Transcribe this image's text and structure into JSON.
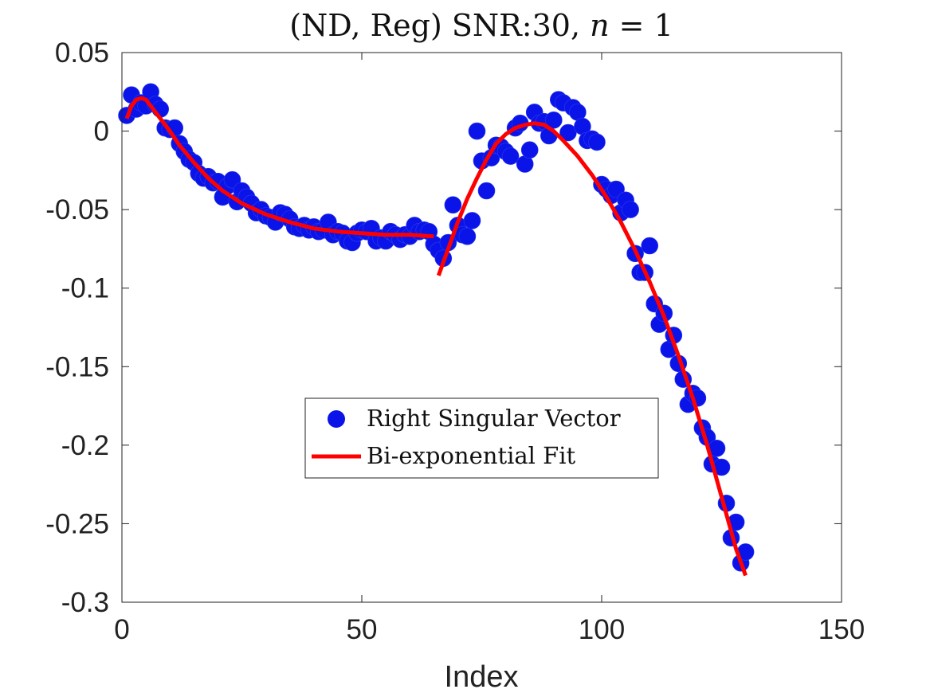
{
  "chart_data": {
    "type": "scatter",
    "title": "(ND, Reg) SNR:30, n = 1",
    "title_parts": {
      "prefix": "(ND, Reg) SNR:30, ",
      "math_var": "n",
      "math_rest": " = 1"
    },
    "xlabel": "Index",
    "ylabel": "",
    "xlim": [
      0,
      150
    ],
    "ylim": [
      -0.3,
      0.05
    ],
    "xticks": [
      0,
      50,
      100,
      150
    ],
    "xtick_labels": [
      "0",
      "50",
      "100",
      "150"
    ],
    "yticks": [
      0.05,
      0,
      -0.05,
      -0.1,
      -0.15,
      -0.2,
      -0.25,
      -0.3
    ],
    "ytick_labels": [
      "0.05",
      "0",
      "-0.05",
      "-0.1",
      "-0.15",
      "-0.2",
      "-0.25",
      "-0.3"
    ],
    "grid": false,
    "legend_position": "center",
    "series": [
      {
        "name": "Right Singular Vector",
        "kind": "scatter",
        "color": "#0a14e8",
        "points": [
          [
            1,
            0.01
          ],
          [
            2,
            0.023
          ],
          [
            3,
            0.014
          ],
          [
            4,
            0.018
          ],
          [
            5,
            0.016
          ],
          [
            6,
            0.025
          ],
          [
            7,
            0.017
          ],
          [
            8,
            0.014
          ],
          [
            9,
            0.002
          ],
          [
            10,
            0.001
          ],
          [
            11,
            0.002
          ],
          [
            12,
            -0.008
          ],
          [
            13,
            -0.013
          ],
          [
            14,
            -0.018
          ],
          [
            15,
            -0.02
          ],
          [
            16,
            -0.027
          ],
          [
            17,
            -0.03
          ],
          [
            18,
            -0.029
          ],
          [
            19,
            -0.033
          ],
          [
            20,
            -0.032
          ],
          [
            21,
            -0.042
          ],
          [
            22,
            -0.035
          ],
          [
            23,
            -0.031
          ],
          [
            24,
            -0.045
          ],
          [
            25,
            -0.038
          ],
          [
            26,
            -0.042
          ],
          [
            27,
            -0.046
          ],
          [
            28,
            -0.052
          ],
          [
            29,
            -0.05
          ],
          [
            30,
            -0.054
          ],
          [
            31,
            -0.055
          ],
          [
            32,
            -0.058
          ],
          [
            33,
            -0.052
          ],
          [
            34,
            -0.053
          ],
          [
            35,
            -0.056
          ],
          [
            36,
            -0.061
          ],
          [
            37,
            -0.062
          ],
          [
            38,
            -0.06
          ],
          [
            39,
            -0.063
          ],
          [
            40,
            -0.061
          ],
          [
            41,
            -0.064
          ],
          [
            42,
            -0.063
          ],
          [
            43,
            -0.058
          ],
          [
            44,
            -0.066
          ],
          [
            45,
            -0.064
          ],
          [
            46,
            -0.065
          ],
          [
            47,
            -0.07
          ],
          [
            48,
            -0.071
          ],
          [
            49,
            -0.065
          ],
          [
            50,
            -0.063
          ],
          [
            51,
            -0.064
          ],
          [
            52,
            -0.062
          ],
          [
            53,
            -0.07
          ],
          [
            54,
            -0.068
          ],
          [
            55,
            -0.07
          ],
          [
            56,
            -0.064
          ],
          [
            57,
            -0.066
          ],
          [
            58,
            -0.069
          ],
          [
            59,
            -0.066
          ],
          [
            60,
            -0.067
          ],
          [
            61,
            -0.06
          ],
          [
            62,
            -0.064
          ],
          [
            63,
            -0.063
          ],
          [
            64,
            -0.064
          ],
          [
            65,
            -0.072
          ],
          [
            66,
            -0.076
          ],
          [
            67,
            -0.081
          ],
          [
            68,
            -0.071
          ],
          [
            69,
            -0.047
          ],
          [
            70,
            -0.06
          ],
          [
            71,
            -0.066
          ],
          [
            72,
            -0.067
          ],
          [
            73,
            -0.057
          ],
          [
            74,
            0.0
          ],
          [
            75,
            -0.019
          ],
          [
            76,
            -0.038
          ],
          [
            77,
            -0.017
          ],
          [
            78,
            -0.009
          ],
          [
            79,
            -0.01
          ],
          [
            80,
            -0.013
          ],
          [
            81,
            -0.016
          ],
          [
            82,
            0.002
          ],
          [
            83,
            0.005
          ],
          [
            84,
            -0.021
          ],
          [
            85,
            -0.012
          ],
          [
            86,
            0.012
          ],
          [
            87,
            0.005
          ],
          [
            88,
            0.006
          ],
          [
            89,
            -0.003
          ],
          [
            90,
            0.007
          ],
          [
            91,
            0.02
          ],
          [
            92,
            0.018
          ],
          [
            93,
            -0.001
          ],
          [
            94,
            0.015
          ],
          [
            95,
            0.012
          ],
          [
            96,
            0.003
          ],
          [
            97,
            -0.006
          ],
          [
            98,
            -0.005
          ],
          [
            99,
            -0.007
          ],
          [
            100,
            -0.034
          ],
          [
            101,
            -0.037
          ],
          [
            102,
            -0.041
          ],
          [
            103,
            -0.037
          ],
          [
            104,
            -0.052
          ],
          [
            105,
            -0.044
          ],
          [
            106,
            -0.05
          ],
          [
            107,
            -0.078
          ],
          [
            108,
            -0.09
          ],
          [
            109,
            -0.09
          ],
          [
            110,
            -0.073
          ],
          [
            111,
            -0.11
          ],
          [
            112,
            -0.123
          ],
          [
            113,
            -0.116
          ],
          [
            114,
            -0.139
          ],
          [
            115,
            -0.13
          ],
          [
            116,
            -0.148
          ],
          [
            117,
            -0.158
          ],
          [
            118,
            -0.174
          ],
          [
            119,
            -0.167
          ],
          [
            120,
            -0.17
          ],
          [
            121,
            -0.189
          ],
          [
            122,
            -0.195
          ],
          [
            123,
            -0.212
          ],
          [
            124,
            -0.202
          ],
          [
            125,
            -0.214
          ],
          [
            126,
            -0.237
          ],
          [
            127,
            -0.259
          ],
          [
            128,
            -0.249
          ],
          [
            129,
            -0.275
          ],
          [
            130,
            -0.268
          ]
        ]
      },
      {
        "name": "Bi-exponential Fit",
        "kind": "line",
        "color": "#ff0000",
        "segments": [
          [
            [
              1,
              0.008
            ],
            [
              2,
              0.016
            ],
            [
              3,
              0.02
            ],
            [
              4,
              0.021
            ],
            [
              5,
              0.02
            ],
            [
              6,
              0.016
            ],
            [
              8,
              0.008
            ],
            [
              10,
              0.0
            ],
            [
              12,
              -0.009
            ],
            [
              15,
              -0.02
            ],
            [
              18,
              -0.03
            ],
            [
              21,
              -0.038
            ],
            [
              25,
              -0.046
            ],
            [
              30,
              -0.053
            ],
            [
              35,
              -0.058
            ],
            [
              40,
              -0.062
            ],
            [
              45,
              -0.064
            ],
            [
              50,
              -0.065
            ],
            [
              55,
              -0.066
            ],
            [
              60,
              -0.066
            ],
            [
              65,
              -0.067
            ]
          ],
          [
            [
              66,
              -0.092
            ],
            [
              68,
              -0.075
            ],
            [
              70,
              -0.058
            ],
            [
              72,
              -0.043
            ],
            [
              74,
              -0.03
            ],
            [
              76,
              -0.018
            ],
            [
              78,
              -0.008
            ],
            [
              80,
              -0.002
            ],
            [
              82,
              0.002
            ],
            [
              84,
              0.004
            ],
            [
              86,
              0.005
            ],
            [
              88,
              0.004
            ],
            [
              90,
              0.0
            ],
            [
              92,
              -0.006
            ],
            [
              95,
              -0.016
            ],
            [
              98,
              -0.028
            ],
            [
              101,
              -0.042
            ],
            [
              104,
              -0.058
            ],
            [
              107,
              -0.076
            ],
            [
              110,
              -0.096
            ],
            [
              113,
              -0.118
            ],
            [
              116,
              -0.143
            ],
            [
              119,
              -0.17
            ],
            [
              122,
              -0.2
            ],
            [
              125,
              -0.233
            ],
            [
              128,
              -0.266
            ],
            [
              130,
              -0.283
            ]
          ]
        ]
      }
    ]
  }
}
